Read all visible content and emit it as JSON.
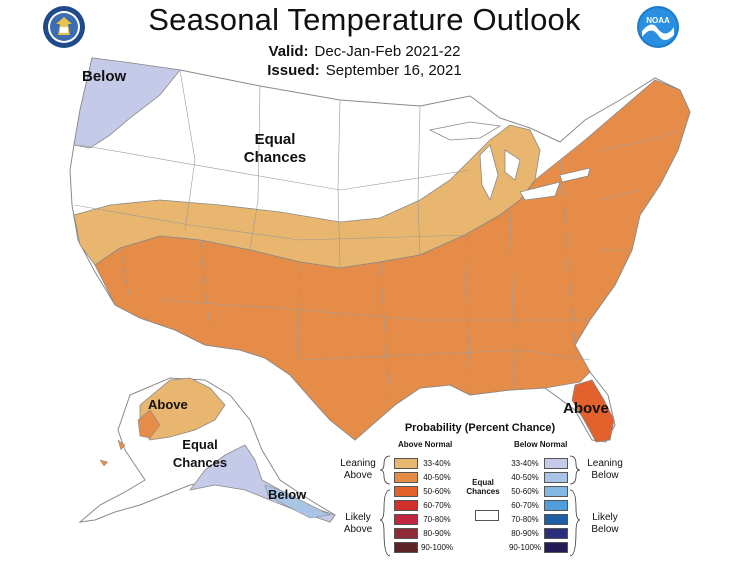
{
  "header": {
    "title": "Seasonal Temperature Outlook",
    "valid_label": "Valid:",
    "valid_value": "Dec-Jan-Feb 2021-22",
    "issued_label": "Issued:",
    "issued_value": "September 16, 2021"
  },
  "logos": {
    "left": "department-of-commerce-seal",
    "right_text": "NOAA"
  },
  "map_labels": {
    "conus_below": "Below",
    "conus_equal": "Equal Chances",
    "conus_above": "Above",
    "alaska_above": "Above",
    "alaska_equal": "Equal Chances",
    "alaska_below": "Below"
  },
  "legend": {
    "title": "Probability (Percent Chance)",
    "above_header": "Above Normal",
    "below_header": "Below Normal",
    "equal_chances": "Equal Chances",
    "leaning_above": "Leaning Above",
    "likely_above": "Likely Above",
    "leaning_below": "Leaning Below",
    "likely_below": "Likely Below",
    "above": [
      {
        "range": "33-40%",
        "color": "#e8b66e"
      },
      {
        "range": "40-50%",
        "color": "#e58c48"
      },
      {
        "range": "50-60%",
        "color": "#e2612c"
      },
      {
        "range": "60-70%",
        "color": "#d1302c"
      },
      {
        "range": "70-80%",
        "color": "#c2253f"
      },
      {
        "range": "80-90%",
        "color": "#8e2b36"
      },
      {
        "range": "90-100%",
        "color": "#5c2224"
      }
    ],
    "below": [
      {
        "range": "33-40%",
        "color": "#c6cae9"
      },
      {
        "range": "40-50%",
        "color": "#a9c5e6"
      },
      {
        "range": "50-60%",
        "color": "#86b8e4"
      },
      {
        "range": "60-70%",
        "color": "#4f9ddb"
      },
      {
        "range": "70-80%",
        "color": "#1e5ea4"
      },
      {
        "range": "80-90%",
        "color": "#2b2f7e"
      },
      {
        "range": "90-100%",
        "color": "#241a56"
      }
    ]
  },
  "colors": {
    "lean_above": "#e8b66e",
    "likely_above_40": "#e58c48",
    "above_50": "#e2612c",
    "lean_below": "#c6cae9",
    "equal": "#ffffff",
    "border": "#8a8a8a"
  }
}
